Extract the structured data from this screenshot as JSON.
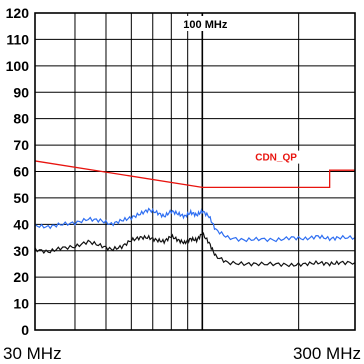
{
  "chart_data": {
    "type": "line",
    "x_scale": "log",
    "x_unit": "MHz",
    "xlim": [
      30,
      300
    ],
    "ylim": [
      0,
      120
    ],
    "y_ticks": [
      0,
      10,
      20,
      30,
      40,
      50,
      60,
      70,
      80,
      90,
      100,
      110,
      120
    ],
    "x_tick_labels": [
      {
        "x": 30,
        "label": "30 MHz"
      },
      {
        "x": 300,
        "label": "300 MHz"
      }
    ],
    "annotation": {
      "x": 100,
      "label": "100 MHz"
    },
    "grid": true,
    "colors": {
      "limit": "#e8140f",
      "blue": "#2f6ff2",
      "black": "#111111",
      "grid": "#000000"
    },
    "series": [
      {
        "name": "CDN_QP",
        "color": "#e8140f",
        "x": [
          30,
          100,
          250,
          250,
          300
        ],
        "y": [
          64,
          54,
          54,
          60.5,
          60.5
        ]
      },
      {
        "color": "#2f6ff2",
        "x": [
          30,
          33,
          36,
          40,
          44,
          48,
          52,
          56,
          60,
          64,
          68,
          72,
          76,
          80,
          84,
          88,
          92,
          96,
          100,
          105,
          110,
          120,
          135,
          150,
          170,
          190,
          210,
          230,
          250,
          270,
          300
        ],
        "y": [
          39.5,
          39,
          40,
          40.5,
          42,
          41.5,
          40,
          41.5,
          42.5,
          44,
          45.5,
          44.5,
          43,
          45,
          44,
          43,
          44.5,
          43.5,
          45,
          43,
          38,
          35,
          34,
          34.5,
          34,
          35,
          34.5,
          35.5,
          34.5,
          35,
          35
        ]
      },
      {
        "color": "#111111",
        "x": [
          30,
          33,
          36,
          40,
          44,
          48,
          52,
          56,
          60,
          64,
          68,
          72,
          76,
          80,
          84,
          88,
          92,
          96,
          100,
          105,
          110,
          120,
          135,
          150,
          170,
          190,
          210,
          230,
          250,
          270,
          300
        ],
        "y": [
          30.5,
          29.5,
          31,
          31.5,
          33.5,
          32,
          30.5,
          31.5,
          34,
          35,
          35,
          34,
          33.5,
          35.5,
          34,
          33,
          34.5,
          34,
          36.5,
          33,
          28,
          25.5,
          25,
          25,
          25,
          24.5,
          25,
          25.5,
          25,
          25.5,
          25.5
        ]
      }
    ]
  }
}
